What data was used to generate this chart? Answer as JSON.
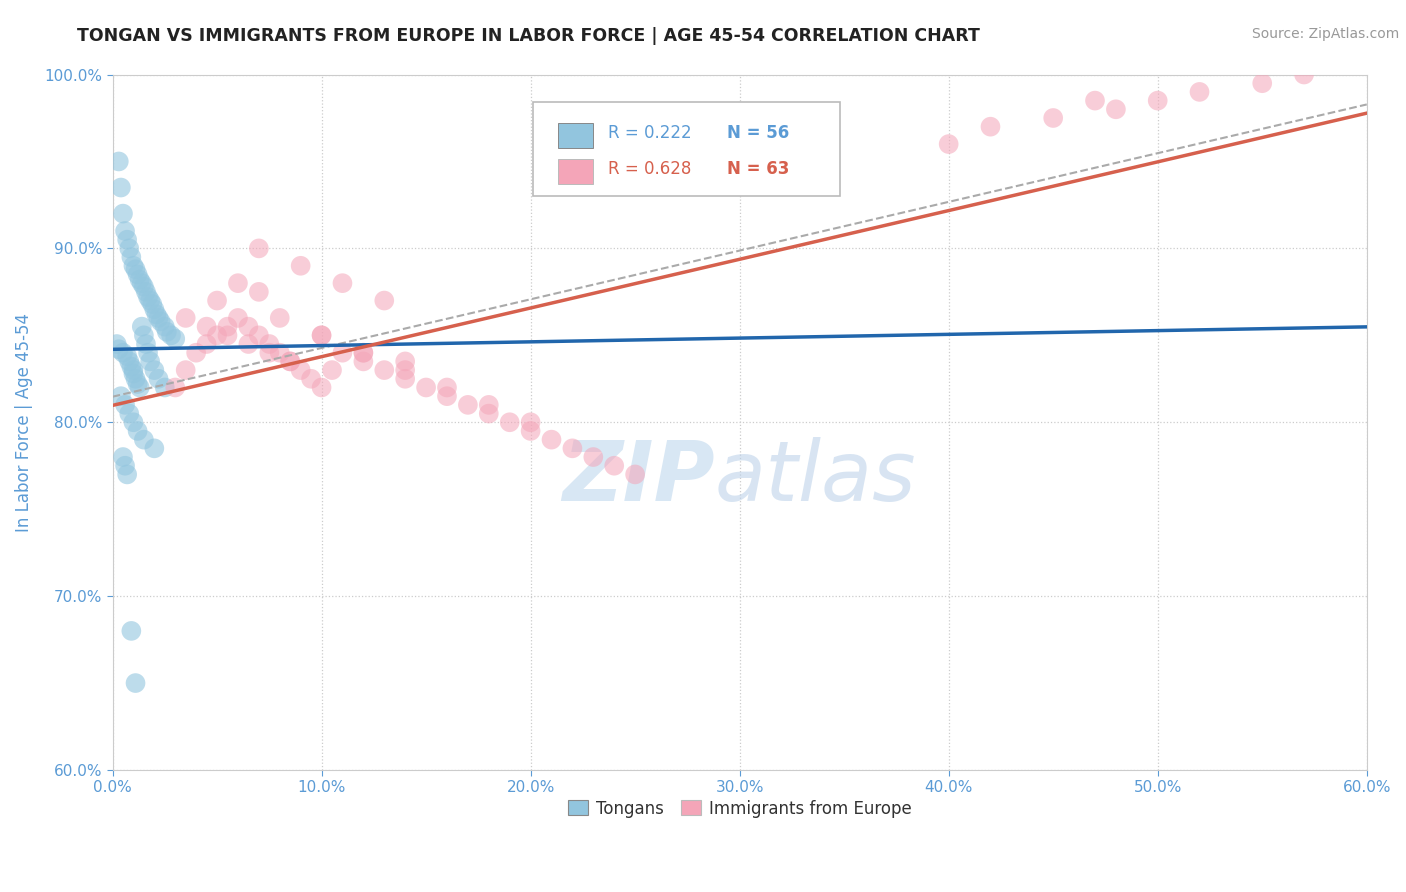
{
  "title": "TONGAN VS IMMIGRANTS FROM EUROPE IN LABOR FORCE | AGE 45-54 CORRELATION CHART",
  "source": "Source: ZipAtlas.com",
  "ylabel_label": "In Labor Force | Age 45-54",
  "legend_label1": "Tongans",
  "legend_label2": "Immigrants from Europe",
  "color_blue": "#92c5de",
  "color_pink": "#f4a5b8",
  "color_blue_line": "#2166ac",
  "color_pink_line": "#d6604d",
  "color_dashed": "#bbbbbb",
  "color_title": "#222222",
  "color_source": "#999999",
  "color_axis_ticks": "#5b9bd5",
  "watermark_color": "#c8ddf0",
  "watermark_color2": "#b8cfe8",
  "xmin": 0.0,
  "xmax": 60.0,
  "ymin": 60.0,
  "ymax": 100.0,
  "tongans_x": [
    0.3,
    0.4,
    0.5,
    0.6,
    0.7,
    0.8,
    0.9,
    1.0,
    1.1,
    1.2,
    1.3,
    1.4,
    1.5,
    1.6,
    1.7,
    1.8,
    1.9,
    2.0,
    2.1,
    2.2,
    2.3,
    2.5,
    2.6,
    2.8,
    3.0,
    0.2,
    0.3,
    0.5,
    0.7,
    0.8,
    0.9,
    1.0,
    1.0,
    1.1,
    1.2,
    1.3,
    1.4,
    1.5,
    1.6,
    1.7,
    1.8,
    2.0,
    2.2,
    2.5,
    0.4,
    0.6,
    0.8,
    1.0,
    1.2,
    1.5,
    2.0,
    0.5,
    0.6,
    0.7,
    0.9,
    1.1
  ],
  "tongans_y": [
    95.0,
    93.5,
    92.0,
    91.0,
    90.5,
    90.0,
    89.5,
    89.0,
    88.8,
    88.5,
    88.2,
    88.0,
    87.8,
    87.5,
    87.2,
    87.0,
    86.8,
    86.5,
    86.2,
    86.0,
    85.8,
    85.5,
    85.2,
    85.0,
    84.8,
    84.5,
    84.2,
    84.0,
    83.8,
    83.5,
    83.2,
    83.0,
    82.8,
    82.5,
    82.2,
    82.0,
    85.5,
    85.0,
    84.5,
    84.0,
    83.5,
    83.0,
    82.5,
    82.0,
    81.5,
    81.0,
    80.5,
    80.0,
    79.5,
    79.0,
    78.5,
    78.0,
    77.5,
    77.0,
    68.0,
    65.0
  ],
  "europe_x": [
    3.0,
    3.5,
    4.0,
    4.5,
    5.0,
    5.5,
    6.0,
    6.5,
    7.0,
    7.5,
    8.0,
    8.5,
    9.0,
    9.5,
    10.0,
    10.5,
    11.0,
    12.0,
    13.0,
    14.0,
    15.0,
    16.0,
    17.0,
    18.0,
    19.0,
    20.0,
    21.0,
    22.0,
    23.0,
    24.0,
    25.0,
    3.5,
    4.5,
    5.5,
    6.5,
    7.5,
    8.5,
    10.0,
    12.0,
    14.0,
    16.0,
    5.0,
    6.0,
    7.0,
    8.0,
    10.0,
    12.0,
    14.0,
    18.0,
    20.0,
    7.0,
    9.0,
    11.0,
    13.0,
    40.0,
    45.0,
    48.0,
    50.0,
    52.0,
    55.0,
    57.0,
    42.0,
    47.0
  ],
  "europe_y": [
    82.0,
    83.0,
    84.0,
    84.5,
    85.0,
    85.5,
    86.0,
    85.5,
    85.0,
    84.5,
    84.0,
    83.5,
    83.0,
    82.5,
    82.0,
    83.0,
    84.0,
    83.5,
    83.0,
    82.5,
    82.0,
    81.5,
    81.0,
    80.5,
    80.0,
    79.5,
    79.0,
    78.5,
    78.0,
    77.5,
    77.0,
    86.0,
    85.5,
    85.0,
    84.5,
    84.0,
    83.5,
    85.0,
    84.0,
    83.5,
    82.0,
    87.0,
    88.0,
    87.5,
    86.0,
    85.0,
    84.0,
    83.0,
    81.0,
    80.0,
    90.0,
    89.0,
    88.0,
    87.0,
    96.0,
    97.5,
    98.0,
    98.5,
    99.0,
    99.5,
    100.0,
    97.0,
    98.5
  ]
}
